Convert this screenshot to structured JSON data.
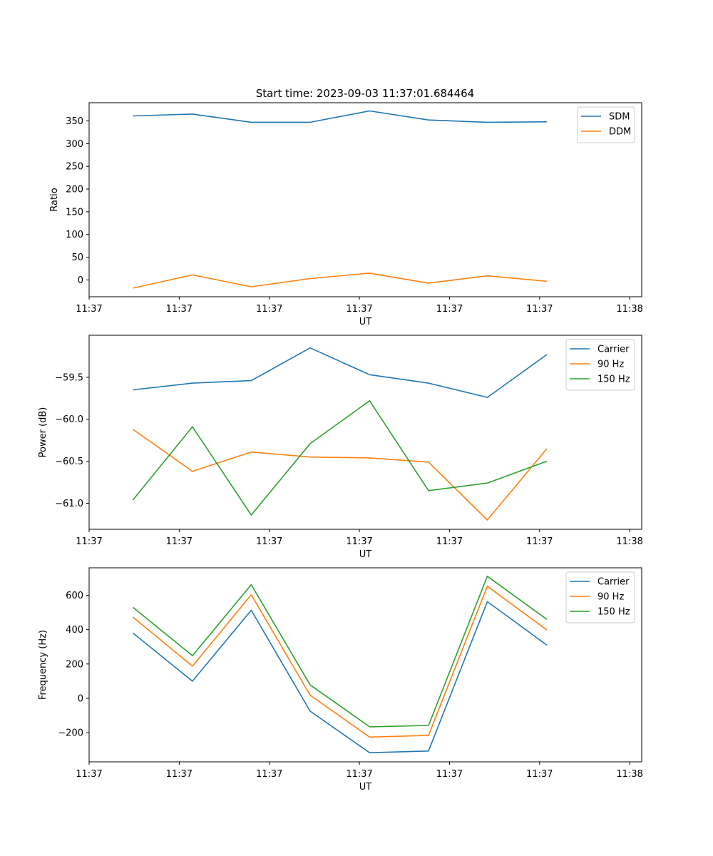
{
  "figure_title": "Start time: 2023-09-03 11:37:01.684464",
  "chart_data": [
    {
      "type": "line",
      "xlabel": "UT",
      "ylabel": "Ratio",
      "xlim": [
        0,
        9.2
      ],
      "ylim": [
        -37,
        390
      ],
      "yticks": [
        0,
        50,
        100,
        150,
        200,
        250,
        300,
        350
      ],
      "ytick_labels": [
        "0",
        "50",
        "100",
        "150",
        "200",
        "250",
        "300",
        "350"
      ],
      "xticks": [
        0,
        1.5,
        3,
        4.5,
        6,
        7.5,
        9
      ],
      "xtick_labels": [
        "11:37",
        "11:37",
        "11:37",
        "11:37",
        "11:37",
        "11:37",
        "11:38"
      ],
      "x": [
        0.73,
        1.72,
        2.7,
        3.68,
        4.67,
        5.65,
        6.63,
        7.62
      ],
      "series": [
        {
          "name": "SDM",
          "color": "#1f77b4",
          "values": [
            361,
            365,
            347,
            347,
            372,
            352,
            347,
            348
          ]
        },
        {
          "name": "DDM",
          "color": "#ff7f0e",
          "values": [
            -18,
            11,
            -15,
            3,
            15,
            -7,
            9,
            -3
          ]
        }
      ],
      "legend": "top-right"
    },
    {
      "type": "line",
      "xlabel": "UT",
      "ylabel": "Power (dB)",
      "xlim": [
        0,
        9.2
      ],
      "ylim": [
        -61.31,
        -59.0
      ],
      "yticks": [
        -61.0,
        -60.5,
        -60.0,
        -59.5
      ],
      "ytick_labels": [
        "−61.0",
        "−60.5",
        "−60.0",
        "−59.5"
      ],
      "xticks": [
        0,
        1.5,
        3,
        4.5,
        6,
        7.5,
        9
      ],
      "xtick_labels": [
        "11:37",
        "11:37",
        "11:37",
        "11:37",
        "11:37",
        "11:37",
        "11:38"
      ],
      "x": [
        0.73,
        1.72,
        2.7,
        3.68,
        4.67,
        5.65,
        6.63,
        7.62
      ],
      "series": [
        {
          "name": "Carrier",
          "color": "#1f77b4",
          "values": [
            -59.65,
            -59.57,
            -59.54,
            -59.15,
            -59.47,
            -59.57,
            -59.74,
            -59.23
          ]
        },
        {
          "name": "90 Hz",
          "color": "#ff7f0e",
          "values": [
            -60.12,
            -60.62,
            -60.39,
            -60.45,
            -60.46,
            -60.51,
            -61.2,
            -60.35
          ]
        },
        {
          "name": "150 Hz",
          "color": "#2ca02c",
          "values": [
            -60.96,
            -60.09,
            -61.14,
            -60.29,
            -59.78,
            -60.85,
            -60.76,
            -60.5
          ]
        }
      ],
      "legend": "top-right"
    },
    {
      "type": "line",
      "xlabel": "UT",
      "ylabel": "Frequency (Hz)",
      "xlim": [
        0,
        9.2
      ],
      "ylim": [
        -370,
        760
      ],
      "yticks": [
        -200,
        0,
        200,
        400,
        600
      ],
      "ytick_labels": [
        "−200",
        "0",
        "200",
        "400",
        "600"
      ],
      "xticks": [
        0,
        1.5,
        3,
        4.5,
        6,
        7.5,
        9
      ],
      "xtick_labels": [
        "11:37",
        "11:37",
        "11:37",
        "11:37",
        "11:37",
        "11:37",
        "11:38"
      ],
      "x": [
        0.73,
        1.72,
        2.7,
        3.68,
        4.67,
        5.65,
        6.63,
        7.62
      ],
      "series": [
        {
          "name": "Carrier",
          "color": "#1f77b4",
          "values": [
            380,
            100,
            513,
            -75,
            -317,
            -307,
            563,
            310
          ]
        },
        {
          "name": "90 Hz",
          "color": "#ff7f0e",
          "values": [
            473,
            187,
            603,
            18,
            -226,
            -216,
            653,
            398
          ]
        },
        {
          "name": "150 Hz",
          "color": "#2ca02c",
          "values": [
            530,
            248,
            662,
            78,
            -166,
            -158,
            711,
            460
          ]
        }
      ],
      "legend": "top-right"
    }
  ]
}
